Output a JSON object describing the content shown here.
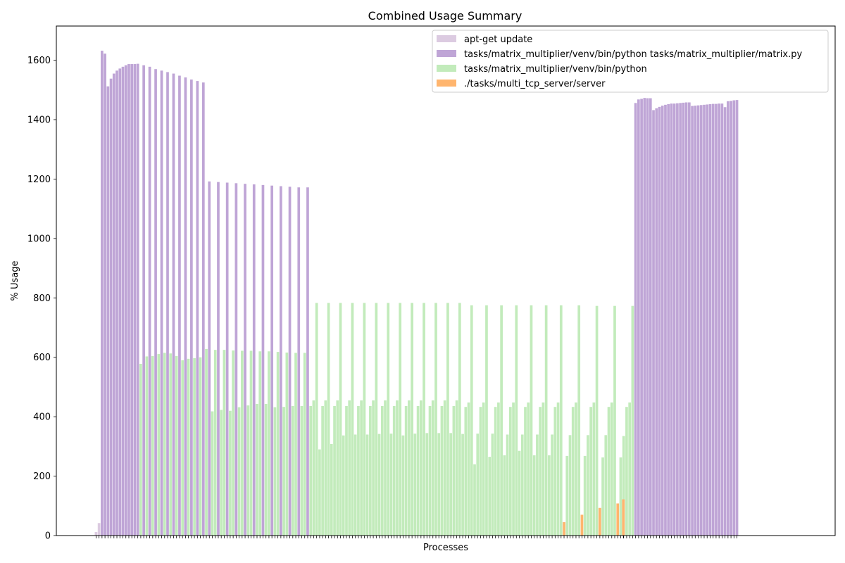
{
  "chart_data": {
    "type": "bar",
    "title": "Combined Usage Summary",
    "xlabel": "Processes",
    "ylabel": "% Usage",
    "ylim": [
      0,
      1715
    ],
    "yticks": [
      0,
      200,
      400,
      600,
      800,
      1000,
      1200,
      1400,
      1600
    ],
    "legend_position": "top-right",
    "series": [
      {
        "name": "apt-get update",
        "color": "#dccbe1",
        "bars": [
          {
            "x": 0,
            "y": 12
          },
          {
            "x": 1,
            "y": 42
          }
        ]
      },
      {
        "name": "tasks/matrix_multiplier/venv/bin/python tasks/matrix_multiplier/matrix.py",
        "color": "#bfa5d6",
        "bars": [
          {
            "x": 2,
            "y": 1632
          },
          {
            "x": 3,
            "y": 1622
          },
          {
            "x": 4,
            "y": 1512
          },
          {
            "x": 5,
            "y": 1538
          },
          {
            "x": 6,
            "y": 1555
          },
          {
            "x": 7,
            "y": 1565
          },
          {
            "x": 8,
            "y": 1572
          },
          {
            "x": 9,
            "y": 1578
          },
          {
            "x": 10,
            "y": 1583
          },
          {
            "x": 11,
            "y": 1587
          },
          {
            "x": 12,
            "y": 1587
          },
          {
            "x": 13,
            "y": 1587
          },
          {
            "x": 14,
            "y": 1588
          },
          {
            "x": 16,
            "y": 1583
          },
          {
            "x": 18,
            "y": 1578
          },
          {
            "x": 20,
            "y": 1570
          },
          {
            "x": 22,
            "y": 1565
          },
          {
            "x": 24,
            "y": 1560
          },
          {
            "x": 26,
            "y": 1555
          },
          {
            "x": 28,
            "y": 1548
          },
          {
            "x": 30,
            "y": 1542
          },
          {
            "x": 32,
            "y": 1535
          },
          {
            "x": 34,
            "y": 1530
          },
          {
            "x": 36,
            "y": 1525
          },
          {
            "x": 38,
            "y": 1192
          },
          {
            "x": 41,
            "y": 1190
          },
          {
            "x": 44,
            "y": 1188
          },
          {
            "x": 47,
            "y": 1186
          },
          {
            "x": 50,
            "y": 1184
          },
          {
            "x": 53,
            "y": 1182
          },
          {
            "x": 56,
            "y": 1180
          },
          {
            "x": 59,
            "y": 1178
          },
          {
            "x": 62,
            "y": 1176
          },
          {
            "x": 65,
            "y": 1174
          },
          {
            "x": 68,
            "y": 1172
          },
          {
            "x": 71,
            "y": 1172
          },
          {
            "x": 181,
            "y": 1456
          },
          {
            "x": 182,
            "y": 1468
          },
          {
            "x": 183,
            "y": 1470
          },
          {
            "x": 184,
            "y": 1473
          },
          {
            "x": 185,
            "y": 1472
          },
          {
            "x": 186,
            "y": 1472
          },
          {
            "x": 187,
            "y": 1432
          },
          {
            "x": 188,
            "y": 1438
          },
          {
            "x": 189,
            "y": 1443
          },
          {
            "x": 190,
            "y": 1447
          },
          {
            "x": 191,
            "y": 1450
          },
          {
            "x": 192,
            "y": 1452
          },
          {
            "x": 193,
            "y": 1454
          },
          {
            "x": 194,
            "y": 1454
          },
          {
            "x": 195,
            "y": 1455
          },
          {
            "x": 196,
            "y": 1456
          },
          {
            "x": 197,
            "y": 1457
          },
          {
            "x": 198,
            "y": 1458
          },
          {
            "x": 199,
            "y": 1458
          },
          {
            "x": 200,
            "y": 1446
          },
          {
            "x": 201,
            "y": 1447
          },
          {
            "x": 202,
            "y": 1448
          },
          {
            "x": 203,
            "y": 1449
          },
          {
            "x": 204,
            "y": 1450
          },
          {
            "x": 205,
            "y": 1451
          },
          {
            "x": 206,
            "y": 1452
          },
          {
            "x": 207,
            "y": 1453
          },
          {
            "x": 208,
            "y": 1453
          },
          {
            "x": 209,
            "y": 1454
          },
          {
            "x": 210,
            "y": 1454
          },
          {
            "x": 211,
            "y": 1442
          },
          {
            "x": 212,
            "y": 1462
          },
          {
            "x": 213,
            "y": 1463
          },
          {
            "x": 214,
            "y": 1465
          },
          {
            "x": 215,
            "y": 1466
          }
        ]
      },
      {
        "name": "tasks/matrix_multiplier/venv/bin/python",
        "color": "#c2ebbb",
        "bars": [
          {
            "x": 15,
            "y": 578
          },
          {
            "x": 17,
            "y": 603
          },
          {
            "x": 19,
            "y": 604
          },
          {
            "x": 21,
            "y": 611
          },
          {
            "x": 23,
            "y": 615
          },
          {
            "x": 25,
            "y": 613
          },
          {
            "x": 27,
            "y": 604
          },
          {
            "x": 29,
            "y": 590
          },
          {
            "x": 31,
            "y": 595
          },
          {
            "x": 33,
            "y": 597
          },
          {
            "x": 35,
            "y": 600
          },
          {
            "x": 37,
            "y": 628
          },
          {
            "x": 39,
            "y": 418
          },
          {
            "x": 40,
            "y": 625
          },
          {
            "x": 42,
            "y": 423
          },
          {
            "x": 43,
            "y": 625
          },
          {
            "x": 45,
            "y": 420
          },
          {
            "x": 46,
            "y": 623
          },
          {
            "x": 48,
            "y": 432
          },
          {
            "x": 49,
            "y": 622
          },
          {
            "x": 51,
            "y": 438
          },
          {
            "x": 52,
            "y": 622
          },
          {
            "x": 54,
            "y": 443
          },
          {
            "x": 55,
            "y": 620
          },
          {
            "x": 57,
            "y": 443
          },
          {
            "x": 58,
            "y": 620
          },
          {
            "x": 60,
            "y": 432
          },
          {
            "x": 61,
            "y": 618
          },
          {
            "x": 63,
            "y": 433
          },
          {
            "x": 64,
            "y": 616
          },
          {
            "x": 66,
            "y": 436
          },
          {
            "x": 67,
            "y": 615
          },
          {
            "x": 69,
            "y": 436
          },
          {
            "x": 70,
            "y": 615
          },
          {
            "x": 72,
            "y": 436
          },
          {
            "x": 73,
            "y": 455
          },
          {
            "x": 74,
            "y": 783
          },
          {
            "x": 75,
            "y": 290
          },
          {
            "x": 76,
            "y": 436
          },
          {
            "x": 77,
            "y": 455
          },
          {
            "x": 78,
            "y": 783
          },
          {
            "x": 79,
            "y": 308
          },
          {
            "x": 80,
            "y": 436
          },
          {
            "x": 81,
            "y": 455
          },
          {
            "x": 82,
            "y": 783
          },
          {
            "x": 83,
            "y": 337
          },
          {
            "x": 84,
            "y": 436
          },
          {
            "x": 85,
            "y": 455
          },
          {
            "x": 86,
            "y": 783
          },
          {
            "x": 87,
            "y": 340
          },
          {
            "x": 88,
            "y": 436
          },
          {
            "x": 89,
            "y": 455
          },
          {
            "x": 90,
            "y": 783
          },
          {
            "x": 91,
            "y": 340
          },
          {
            "x": 92,
            "y": 436
          },
          {
            "x": 93,
            "y": 455
          },
          {
            "x": 94,
            "y": 783
          },
          {
            "x": 95,
            "y": 342
          },
          {
            "x": 96,
            "y": 436
          },
          {
            "x": 97,
            "y": 455
          },
          {
            "x": 98,
            "y": 783
          },
          {
            "x": 99,
            "y": 343
          },
          {
            "x": 100,
            "y": 436
          },
          {
            "x": 101,
            "y": 455
          },
          {
            "x": 102,
            "y": 783
          },
          {
            "x": 103,
            "y": 337
          },
          {
            "x": 104,
            "y": 436
          },
          {
            "x": 105,
            "y": 455
          },
          {
            "x": 106,
            "y": 783
          },
          {
            "x": 107,
            "y": 343
          },
          {
            "x": 108,
            "y": 436
          },
          {
            "x": 109,
            "y": 455
          },
          {
            "x": 110,
            "y": 783
          },
          {
            "x": 111,
            "y": 345
          },
          {
            "x": 112,
            "y": 436
          },
          {
            "x": 113,
            "y": 455
          },
          {
            "x": 114,
            "y": 783
          },
          {
            "x": 115,
            "y": 345
          },
          {
            "x": 116,
            "y": 436
          },
          {
            "x": 117,
            "y": 455
          },
          {
            "x": 118,
            "y": 783
          },
          {
            "x": 119,
            "y": 345
          },
          {
            "x": 120,
            "y": 436
          },
          {
            "x": 121,
            "y": 455
          },
          {
            "x": 122,
            "y": 783
          },
          {
            "x": 123,
            "y": 342
          },
          {
            "x": 124,
            "y": 433
          },
          {
            "x": 125,
            "y": 448
          },
          {
            "x": 126,
            "y": 775
          },
          {
            "x": 127,
            "y": 240
          },
          {
            "x": 128,
            "y": 343
          },
          {
            "x": 129,
            "y": 433
          },
          {
            "x": 130,
            "y": 448
          },
          {
            "x": 131,
            "y": 775
          },
          {
            "x": 132,
            "y": 265
          },
          {
            "x": 133,
            "y": 343
          },
          {
            "x": 134,
            "y": 433
          },
          {
            "x": 135,
            "y": 448
          },
          {
            "x": 136,
            "y": 775
          },
          {
            "x": 137,
            "y": 270
          },
          {
            "x": 138,
            "y": 340
          },
          {
            "x": 139,
            "y": 433
          },
          {
            "x": 140,
            "y": 448
          },
          {
            "x": 141,
            "y": 775
          },
          {
            "x": 142,
            "y": 285
          },
          {
            "x": 143,
            "y": 340
          },
          {
            "x": 144,
            "y": 433
          },
          {
            "x": 145,
            "y": 448
          },
          {
            "x": 146,
            "y": 775
          },
          {
            "x": 147,
            "y": 270
          },
          {
            "x": 148,
            "y": 340
          },
          {
            "x": 149,
            "y": 433
          },
          {
            "x": 150,
            "y": 448
          },
          {
            "x": 151,
            "y": 775
          },
          {
            "x": 152,
            "y": 270
          },
          {
            "x": 153,
            "y": 340
          },
          {
            "x": 154,
            "y": 433
          },
          {
            "x": 155,
            "y": 448
          },
          {
            "x": 156,
            "y": 775
          },
          {
            "x": 158,
            "y": 268
          },
          {
            "x": 159,
            "y": 338
          },
          {
            "x": 160,
            "y": 433
          },
          {
            "x": 161,
            "y": 448
          },
          {
            "x": 162,
            "y": 775
          },
          {
            "x": 164,
            "y": 268
          },
          {
            "x": 165,
            "y": 338
          },
          {
            "x": 166,
            "y": 433
          },
          {
            "x": 167,
            "y": 448
          },
          {
            "x": 168,
            "y": 773
          },
          {
            "x": 170,
            "y": 263
          },
          {
            "x": 171,
            "y": 338
          },
          {
            "x": 172,
            "y": 433
          },
          {
            "x": 173,
            "y": 448
          },
          {
            "x": 174,
            "y": 773
          },
          {
            "x": 176,
            "y": 263
          },
          {
            "x": 177,
            "y": 335
          },
          {
            "x": 178,
            "y": 433
          },
          {
            "x": 179,
            "y": 448
          },
          {
            "x": 180,
            "y": 773
          }
        ]
      },
      {
        "name": "./tasks/multi_tcp_server/server",
        "color": "#ffb56e",
        "bars": [
          {
            "x": 157,
            "y": 45
          },
          {
            "x": 163,
            "y": 70
          },
          {
            "x": 169,
            "y": 93
          },
          {
            "x": 175,
            "y": 108
          },
          {
            "x": 176.9,
            "y": 122
          }
        ]
      }
    ]
  }
}
